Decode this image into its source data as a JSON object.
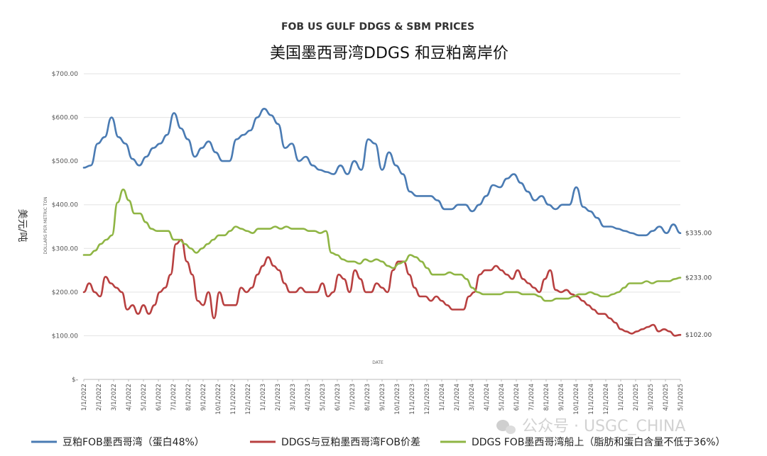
{
  "chart_data": {
    "type": "line",
    "title": "FOB US GULF DDGS & SBM PRICES",
    "subtitle": "美国墨西哥湾DDGS 和豆粕离岸价",
    "xlabel": "DATE",
    "ylabel": "DOLLARS PER METRIC TON",
    "unit_label": "美元/吨",
    "ylim": [
      0,
      700
    ],
    "y_ticks": [
      "$-",
      "$100.00",
      "$200.00",
      "$300.00",
      "$400.00",
      "$500.00",
      "$600.00",
      "$700.00"
    ],
    "x_ticks": [
      "1/1/2022",
      "2/1/2022",
      "3/1/2022",
      "4/1/2022",
      "5/1/2022",
      "6/1/2022",
      "7/1/2022",
      "8/1/2022",
      "9/1/2022",
      "10/1/2022",
      "11/1/2022",
      "12/1/2022",
      "1/1/2023",
      "2/1/2023",
      "3/1/2023",
      "4/1/2023",
      "5/1/2023",
      "6/1/2023",
      "7/1/2023",
      "8/1/2023",
      "9/1/2023",
      "10/1/2023",
      "11/1/2023",
      "12/1/2023",
      "1/1/2024",
      "2/1/2024",
      "3/1/2024",
      "4/1/2024",
      "5/1/2024",
      "6/1/2024",
      "7/1/2024",
      "8/1/2024",
      "9/1/2024",
      "10/1/2024",
      "11/1/2024",
      "12/1/2024",
      "1/1/2025",
      "2/1/2025",
      "3/1/2025",
      "4/1/2025",
      "5/1/2025"
    ],
    "grid": "horizontal",
    "legend_position": "bottom",
    "watermark": "公众号 · USGC_CHINA",
    "series": [
      {
        "name": "豆粕FOB墨西哥湾（蛋白48%）",
        "color": "#4a7bb3",
        "end_label": "$335.00",
        "values": [
          485,
          490,
          540,
          555,
          600,
          555,
          540,
          505,
          490,
          510,
          530,
          540,
          560,
          610,
          575,
          550,
          510,
          530,
          545,
          520,
          500,
          500,
          550,
          560,
          570,
          600,
          620,
          605,
          585,
          530,
          540,
          500,
          510,
          490,
          480,
          475,
          470,
          490,
          470,
          500,
          480,
          550,
          540,
          480,
          520,
          490,
          470,
          430,
          420,
          420,
          420,
          410,
          390,
          390,
          400,
          400,
          385,
          400,
          420,
          445,
          440,
          460,
          470,
          450,
          430,
          410,
          420,
          400,
          390,
          400,
          400,
          440,
          395,
          385,
          370,
          350,
          350,
          345,
          340,
          335,
          330,
          330,
          340,
          350,
          335,
          355,
          335
        ]
      },
      {
        "name": "DDGS与豆粕墨西哥湾FOB价差",
        "color": "#b84040",
        "end_label": "$102.00",
        "values": [
          200,
          220,
          200,
          190,
          235,
          220,
          210,
          200,
          160,
          170,
          150,
          170,
          150,
          170,
          200,
          210,
          240,
          310,
          320,
          270,
          240,
          180,
          170,
          200,
          140,
          200,
          170,
          170,
          170,
          210,
          200,
          210,
          240,
          260,
          280,
          260,
          250,
          220,
          200,
          200,
          210,
          200,
          200,
          200,
          220,
          190,
          200,
          240,
          230,
          200,
          250,
          230,
          200,
          200,
          220,
          210,
          200,
          250,
          270,
          270,
          240,
          210,
          190,
          190,
          180,
          190,
          180,
          170,
          160,
          160,
          160,
          190,
          200,
          240,
          250,
          250,
          260,
          250,
          240,
          230,
          250,
          230,
          220,
          210,
          200,
          230,
          250,
          205,
          200,
          205,
          195,
          190,
          180,
          170,
          160,
          150,
          150,
          140,
          130,
          115,
          110,
          105,
          110,
          115,
          120,
          125,
          110,
          115,
          110,
          100,
          102
        ]
      },
      {
        "name": "DDGS FOB墨西哥湾船上（脂肪和蛋白含量不低于36%）",
        "color": "#8fb544",
        "end_label": "$233.00",
        "values": [
          285,
          285,
          295,
          310,
          320,
          330,
          405,
          435,
          410,
          380,
          380,
          360,
          345,
          340,
          340,
          340,
          320,
          320,
          310,
          300,
          290,
          300,
          310,
          320,
          330,
          330,
          340,
          350,
          345,
          340,
          335,
          345,
          345,
          345,
          350,
          345,
          350,
          345,
          345,
          345,
          340,
          340,
          335,
          340,
          290,
          285,
          275,
          270,
          270,
          265,
          275,
          270,
          275,
          270,
          260,
          255,
          265,
          270,
          285,
          280,
          270,
          255,
          240,
          240,
          240,
          245,
          240,
          240,
          230,
          210,
          200,
          195,
          195,
          195,
          195,
          200,
          200,
          200,
          195,
          195,
          195,
          190,
          180,
          180,
          185,
          185,
          185,
          190,
          195,
          195,
          200,
          195,
          190,
          190,
          195,
          200,
          210,
          220,
          220,
          220,
          225,
          220,
          225,
          225,
          225,
          230,
          233
        ]
      }
    ]
  }
}
